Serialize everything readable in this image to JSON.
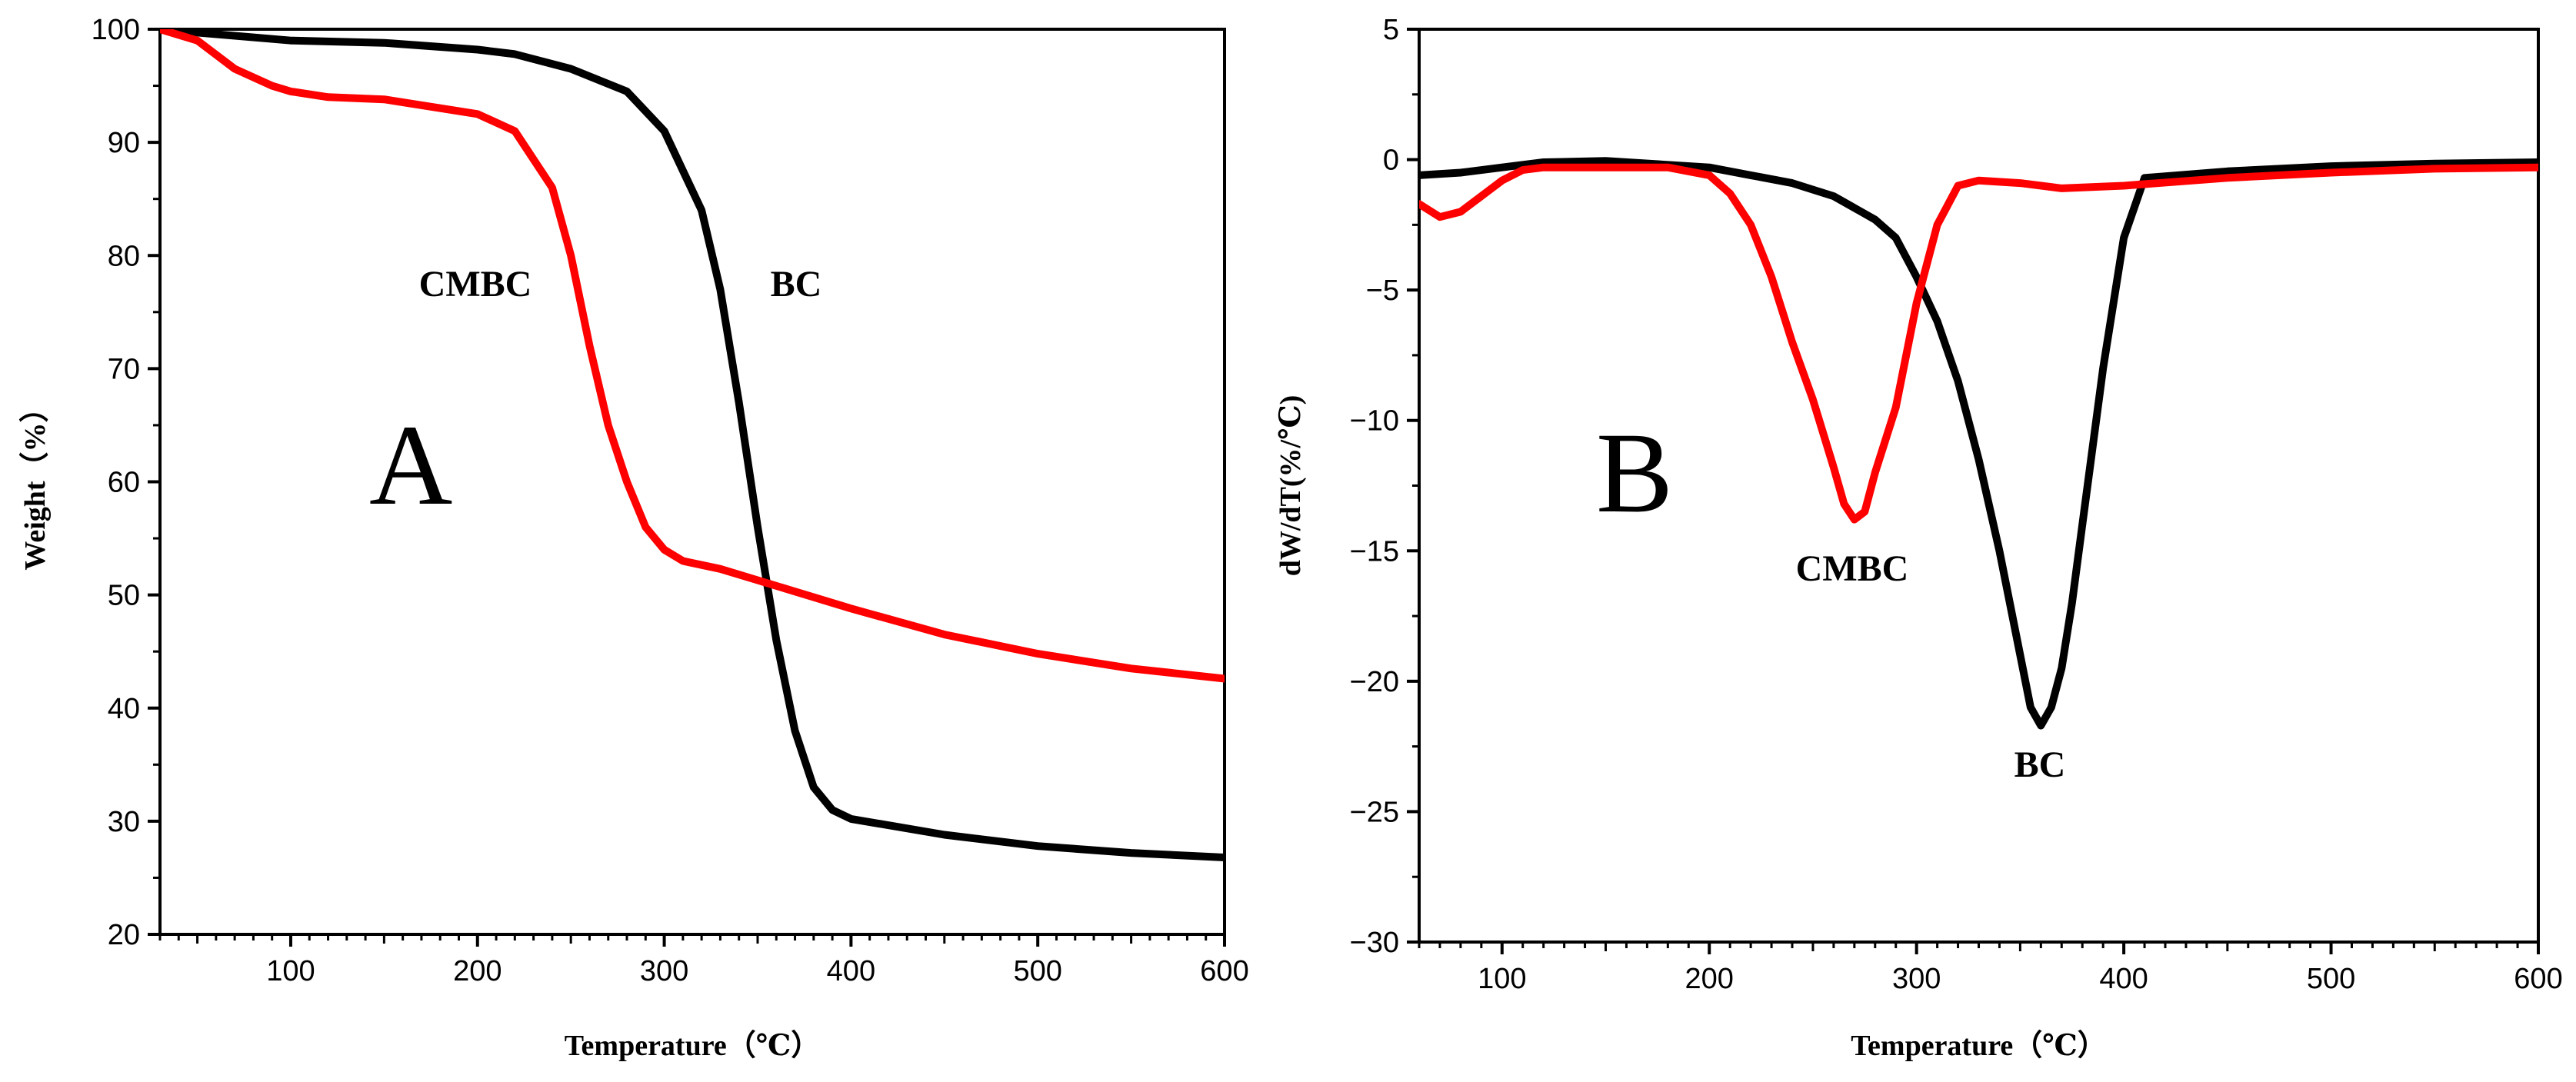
{
  "chart_data": [
    {
      "type": "line",
      "panel_label": "A",
      "title": "",
      "xlabel": "Temperature（℃）",
      "ylabel": "Weight（%）",
      "xlim": [
        30,
        600
      ],
      "ylim": [
        20,
        100
      ],
      "xticks": [
        "100",
        "200",
        "300",
        "400",
        "500",
        "600"
      ],
      "yticks": [
        "20",
        "30",
        "40",
        "50",
        "60",
        "70",
        "80",
        "90",
        "100"
      ],
      "x_tick_values": [
        100,
        200,
        300,
        400,
        500,
        600
      ],
      "y_tick_values": [
        20,
        30,
        40,
        50,
        60,
        70,
        80,
        90,
        100
      ],
      "annotations": [
        {
          "text": "CMBC",
          "x": 200,
          "y": 78
        },
        {
          "text": "BC",
          "x": 370,
          "y": 78
        }
      ],
      "series": [
        {
          "name": "BC",
          "color": "#000000",
          "x": [
            30,
            50,
            100,
            150,
            200,
            220,
            250,
            280,
            300,
            320,
            330,
            340,
            350,
            360,
            370,
            380,
            390,
            400,
            450,
            500,
            550,
            600
          ],
          "y": [
            100,
            99.7,
            99,
            98.8,
            98.2,
            97.8,
            96.5,
            94.5,
            91,
            84,
            77,
            67,
            56,
            46,
            38,
            33,
            31,
            30.2,
            28.8,
            27.8,
            27.2,
            26.8
          ]
        },
        {
          "name": "CMBC",
          "color": "#ff0000",
          "x": [
            30,
            50,
            70,
            90,
            100,
            120,
            150,
            200,
            220,
            240,
            250,
            260,
            270,
            280,
            290,
            300,
            310,
            330,
            350,
            400,
            450,
            500,
            550,
            600
          ],
          "y": [
            100,
            99,
            96.5,
            95,
            94.5,
            94,
            93.8,
            92.5,
            91,
            86,
            80,
            72,
            65,
            60,
            56,
            54,
            53,
            52.3,
            51.3,
            48.8,
            46.5,
            44.8,
            43.5,
            42.6
          ]
        }
      ]
    },
    {
      "type": "line",
      "panel_label": "B",
      "title": "",
      "xlabel": "Temperature（℃）",
      "ylabel": "dW/dT(%/℃)",
      "xlim": [
        60,
        600
      ],
      "ylim": [
        -30,
        5
      ],
      "xticks": [
        "100",
        "200",
        "300",
        "400",
        "500",
        "600"
      ],
      "yticks": [
        "−30",
        "−25",
        "−20",
        "−15",
        "−10",
        "−5",
        "0",
        "5"
      ],
      "x_tick_values": [
        100,
        200,
        300,
        400,
        500,
        600
      ],
      "y_tick_values": [
        -30,
        -25,
        -20,
        -15,
        -10,
        -5,
        0,
        5
      ],
      "annotations": [
        {
          "text": "CMBC",
          "x": 282,
          "y": -16
        },
        {
          "text": "BC",
          "x": 360,
          "y": -24
        }
      ],
      "series": [
        {
          "name": "BC",
          "color": "#000000",
          "x": [
            60,
            80,
            100,
            120,
            150,
            200,
            220,
            240,
            260,
            280,
            290,
            300,
            310,
            320,
            330,
            340,
            350,
            355,
            360,
            365,
            370,
            375,
            380,
            390,
            400,
            410,
            450,
            500,
            550,
            600
          ],
          "y": [
            -0.6,
            -0.5,
            -0.3,
            -0.1,
            -0.05,
            -0.3,
            -0.6,
            -0.9,
            -1.4,
            -2.3,
            -3.0,
            -4.5,
            -6.2,
            -8.5,
            -11.5,
            -15,
            -19,
            -21,
            -21.7,
            -21,
            -19.5,
            -17,
            -14,
            -8,
            -3,
            -0.7,
            -0.45,
            -0.25,
            -0.15,
            -0.1
          ]
        },
        {
          "name": "CMBC",
          "color": "#ff0000",
          "x": [
            60,
            70,
            80,
            90,
            100,
            110,
            120,
            150,
            180,
            200,
            210,
            220,
            230,
            240,
            250,
            260,
            265,
            270,
            275,
            280,
            290,
            300,
            310,
            320,
            330,
            350,
            370,
            400,
            450,
            500,
            550,
            600
          ],
          "y": [
            -1.7,
            -2.2,
            -2.0,
            -1.4,
            -0.8,
            -0.4,
            -0.3,
            -0.3,
            -0.3,
            -0.6,
            -1.3,
            -2.5,
            -4.5,
            -7,
            -9.2,
            -11.8,
            -13.2,
            -13.8,
            -13.5,
            -12.0,
            -9.5,
            -5.5,
            -2.5,
            -1.0,
            -0.8,
            -0.9,
            -1.1,
            -1.0,
            -0.7,
            -0.5,
            -0.35,
            -0.3
          ]
        }
      ]
    }
  ]
}
